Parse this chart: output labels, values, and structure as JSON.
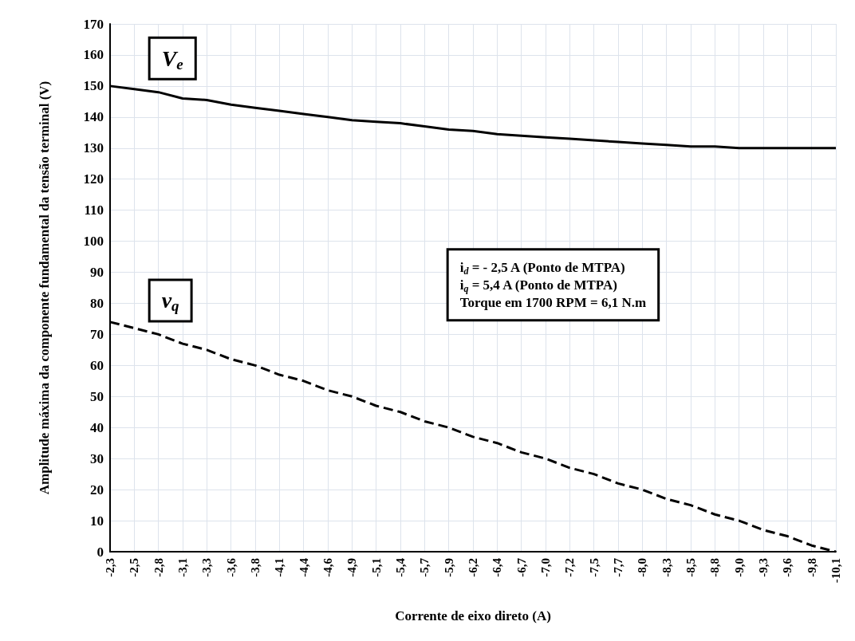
{
  "chart_data": {
    "type": "line",
    "xlabel": "Corrente de eixo direto (A)",
    "ylabel": "Amplitude máxima da componente fundamental da tensão terminal (V)",
    "categories": [
      "-2,3",
      "-2,5",
      "-2,8",
      "-3,1",
      "-3,3",
      "-3,6",
      "-3,8",
      "-4,1",
      "-4,4",
      "-4,6",
      "-4,9",
      "-5,1",
      "-5,4",
      "-5,7",
      "-5,9",
      "-6,2",
      "-6,4",
      "-6,7",
      "-7,0",
      "-7,2",
      "-7,5",
      "-7,7",
      "-8,0",
      "-8,3",
      "-8,5",
      "-8,8",
      "-9,0",
      "-9,3",
      "-9,6",
      "-9,8",
      "-10,1"
    ],
    "series": [
      {
        "name": "V$_{e}$",
        "color": "#000000",
        "line_style": "solid",
        "values": [
          150,
          149,
          148,
          146,
          145.5,
          144,
          143,
          142,
          141,
          140,
          139,
          138.5,
          138,
          137,
          136,
          135.5,
          134.5,
          134,
          133.5,
          133,
          132.5,
          132,
          131.5,
          131,
          130.5,
          130.5,
          130,
          130,
          130,
          130,
          130
        ]
      },
      {
        "name": "v$_{q}$",
        "color": "#000000",
        "line_style": "dashed",
        "values": [
          74,
          72,
          70,
          67,
          65,
          62,
          60,
          57,
          55,
          52,
          50,
          47,
          45,
          42,
          40,
          37,
          35,
          32,
          30,
          27,
          25,
          22,
          20,
          17,
          15,
          12,
          10,
          7,
          5,
          2,
          0
        ]
      }
    ],
    "ylim": [
      0,
      170
    ],
    "yticks": [
      0,
      10,
      20,
      30,
      40,
      50,
      60,
      70,
      80,
      90,
      100,
      110,
      120,
      130,
      140,
      150,
      160,
      170
    ],
    "grid": true,
    "marker": "none",
    "annotations": [
      "i$_{d}$ = - 2,5 A (Ponto de MTPA)",
      "i$_{q}$ = 5,4 A (Ponto de MTPA)",
      "Torque em 1700 RPM = 6,1 N.m"
    ]
  }
}
